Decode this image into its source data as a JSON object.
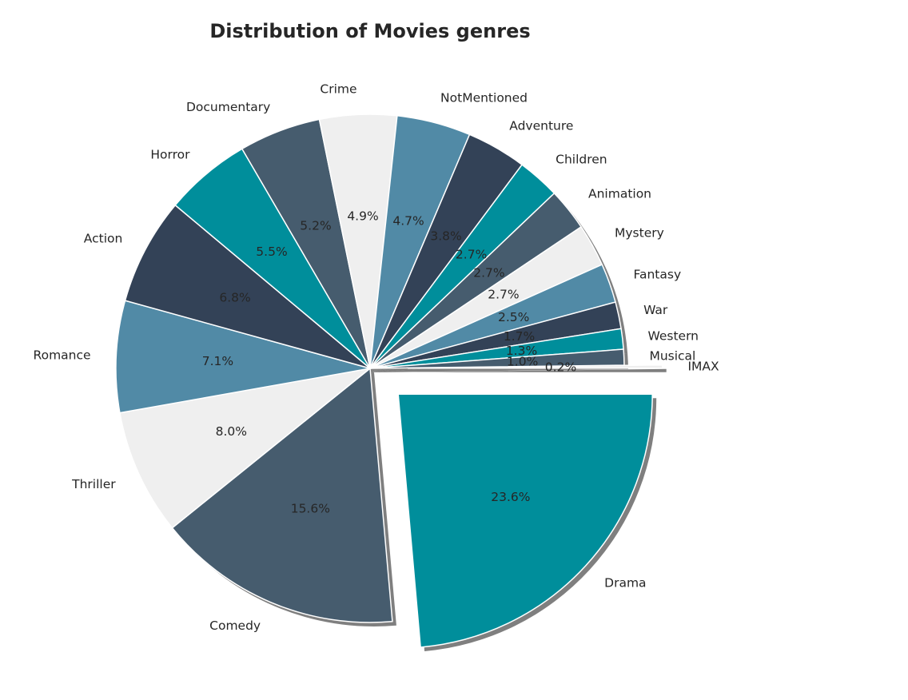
{
  "chart_data": {
    "type": "pie",
    "title": "Distribution of Movies genres",
    "start_angle_deg": 0,
    "direction": "clockwise",
    "shadow": true,
    "explode": {
      "Drama": 0.15,
      "IMAX": 0.15
    },
    "palette": [
      "#008e9b",
      "#465c6e",
      "#efefef",
      "#518aa6",
      "#334257"
    ],
    "slices": [
      {
        "label": "Drama",
        "value": 23.6,
        "pct_label": "23.6%"
      },
      {
        "label": "Comedy",
        "value": 15.6,
        "pct_label": "15.6%"
      },
      {
        "label": "Thriller",
        "value": 8.0,
        "pct_label": "8.0%"
      },
      {
        "label": "Romance",
        "value": 7.1,
        "pct_label": "7.1%"
      },
      {
        "label": "Action",
        "value": 6.8,
        "pct_label": "6.8%"
      },
      {
        "label": "Horror",
        "value": 5.5,
        "pct_label": "5.5%"
      },
      {
        "label": "Documentary",
        "value": 5.2,
        "pct_label": "5.2%"
      },
      {
        "label": "Crime",
        "value": 4.9,
        "pct_label": "4.9%"
      },
      {
        "label": "NotMentioned",
        "value": 4.7,
        "pct_label": "4.7%"
      },
      {
        "label": "Adventure",
        "value": 3.8,
        "pct_label": "3.8%"
      },
      {
        "label": "Children",
        "value": 2.7,
        "pct_label": "2.7%"
      },
      {
        "label": "Animation",
        "value": 2.7,
        "pct_label": "2.7%"
      },
      {
        "label": "Mystery",
        "value": 2.7,
        "pct_label": "2.7%"
      },
      {
        "label": "Fantasy",
        "value": 2.5,
        "pct_label": "2.5%"
      },
      {
        "label": "War",
        "value": 1.7,
        "pct_label": "1.7%"
      },
      {
        "label": "Western",
        "value": 1.3,
        "pct_label": "1.3%"
      },
      {
        "label": "Musical",
        "value": 1.0,
        "pct_label": "1.0%"
      },
      {
        "label": "IMAX",
        "value": 0.2,
        "pct_label": "0.2%"
      }
    ]
  }
}
